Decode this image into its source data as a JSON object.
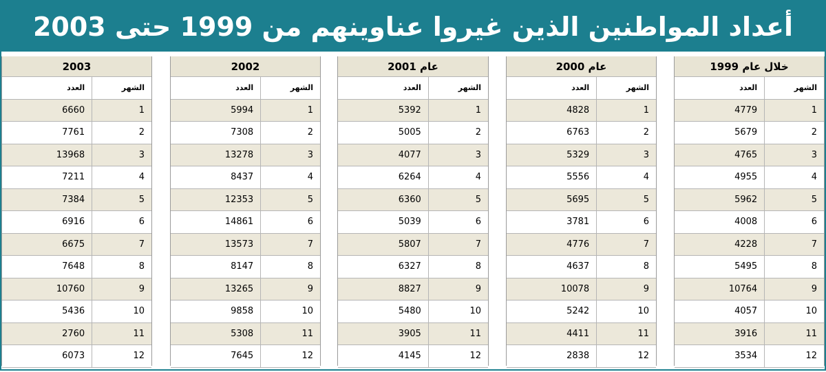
{
  "title": "أعداد المواطنين الذين غيروا عناوينهم من 1999 حتى 2003",
  "colors": {
    "accent": "#1c7f8f",
    "row_shade": "#ece8da",
    "header_bg": "#e8e4d4"
  },
  "tables": [
    {
      "year_label": "خلال عام 1999",
      "month_header": "الشهر",
      "count_header": "العدد",
      "rows": [
        {
          "month": "1",
          "count": "4779"
        },
        {
          "month": "2",
          "count": "5679"
        },
        {
          "month": "3",
          "count": "4765"
        },
        {
          "month": "4",
          "count": "4955"
        },
        {
          "month": "5",
          "count": "5962"
        },
        {
          "month": "6",
          "count": "4008"
        },
        {
          "month": "7",
          "count": "4228"
        },
        {
          "month": "8",
          "count": "5495"
        },
        {
          "month": "9",
          "count": "10764"
        },
        {
          "month": "10",
          "count": "4057"
        },
        {
          "month": "11",
          "count": "3916"
        },
        {
          "month": "12",
          "count": "3534"
        }
      ]
    },
    {
      "year_label": "عام 2000",
      "month_header": "الشهر",
      "count_header": "العدد",
      "rows": [
        {
          "month": "1",
          "count": "4828"
        },
        {
          "month": "2",
          "count": "6763"
        },
        {
          "month": "3",
          "count": "5329"
        },
        {
          "month": "4",
          "count": "5556"
        },
        {
          "month": "5",
          "count": "5695"
        },
        {
          "month": "6",
          "count": "3781"
        },
        {
          "month": "7",
          "count": "4776"
        },
        {
          "month": "8",
          "count": "4637"
        },
        {
          "month": "9",
          "count": "10078"
        },
        {
          "month": "10",
          "count": "5242"
        },
        {
          "month": "11",
          "count": "4411"
        },
        {
          "month": "12",
          "count": "2838"
        }
      ]
    },
    {
      "year_label": "عام 2001",
      "month_header": "الشهر",
      "count_header": "العدد",
      "rows": [
        {
          "month": "1",
          "count": "5392"
        },
        {
          "month": "2",
          "count": "5005"
        },
        {
          "month": "3",
          "count": "4077"
        },
        {
          "month": "4",
          "count": "6264"
        },
        {
          "month": "5",
          "count": "6360"
        },
        {
          "month": "6",
          "count": "5039"
        },
        {
          "month": "7",
          "count": "5807"
        },
        {
          "month": "8",
          "count": "6327"
        },
        {
          "month": "9",
          "count": "8827"
        },
        {
          "month": "10",
          "count": "5480"
        },
        {
          "month": "11",
          "count": "3905"
        },
        {
          "month": "12",
          "count": "4145"
        }
      ]
    },
    {
      "year_label": "2002",
      "month_header": "الشهر",
      "count_header": "العدد",
      "rows": [
        {
          "month": "1",
          "count": "5994"
        },
        {
          "month": "2",
          "count": "7308"
        },
        {
          "month": "3",
          "count": "13278"
        },
        {
          "month": "4",
          "count": "8437"
        },
        {
          "month": "5",
          "count": "12353"
        },
        {
          "month": "6",
          "count": "14861"
        },
        {
          "month": "7",
          "count": "13573"
        },
        {
          "month": "8",
          "count": "8147"
        },
        {
          "month": "9",
          "count": "13265"
        },
        {
          "month": "10",
          "count": "9858"
        },
        {
          "month": "11",
          "count": "5308"
        },
        {
          "month": "12",
          "count": "7645"
        }
      ]
    },
    {
      "year_label": "2003",
      "month_header": "الشهر",
      "count_header": "العدد",
      "rows": [
        {
          "month": "1",
          "count": "6660"
        },
        {
          "month": "2",
          "count": "7761"
        },
        {
          "month": "3",
          "count": "13968"
        },
        {
          "month": "4",
          "count": "7211"
        },
        {
          "month": "5",
          "count": "7384"
        },
        {
          "month": "6",
          "count": "6916"
        },
        {
          "month": "7",
          "count": "6675"
        },
        {
          "month": "8",
          "count": "7648"
        },
        {
          "month": "9",
          "count": "10760"
        },
        {
          "month": "10",
          "count": "5436"
        },
        {
          "month": "11",
          "count": "2760"
        },
        {
          "month": "12",
          "count": "6073"
        }
      ]
    }
  ]
}
